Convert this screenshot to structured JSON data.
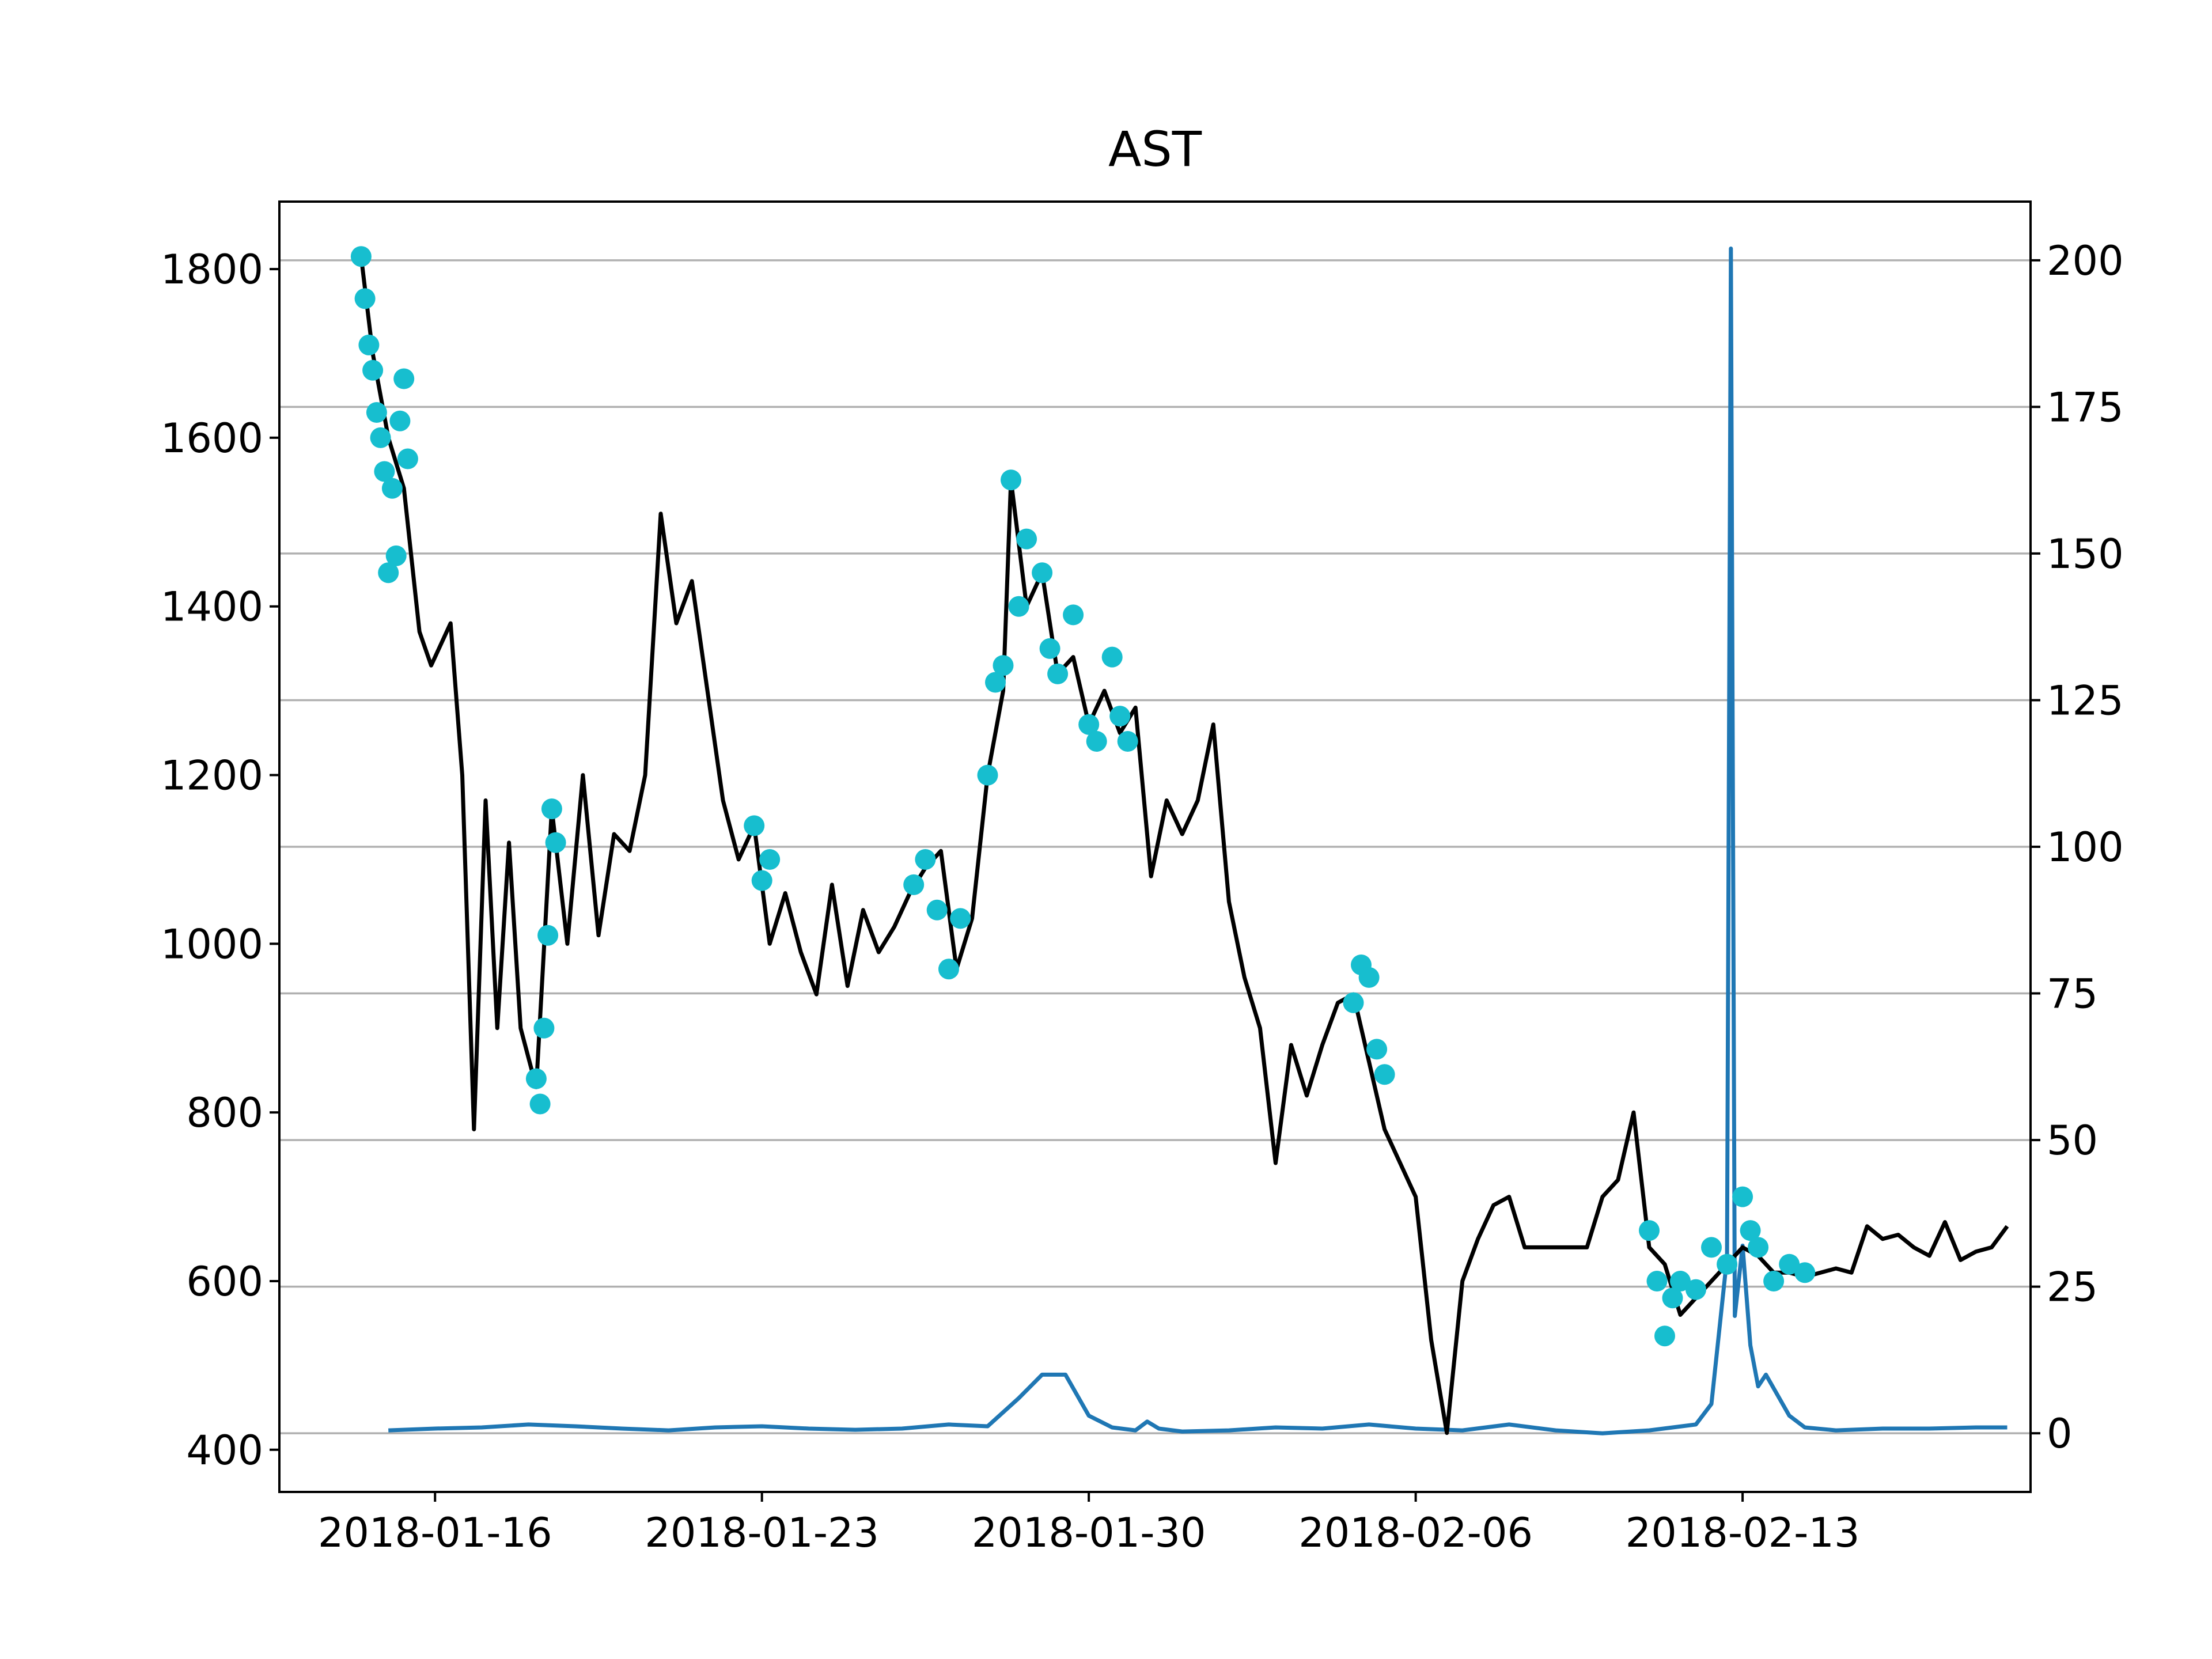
{
  "chart_data": {
    "type": "line",
    "title": "AST",
    "xlabel": "",
    "ylabel": "",
    "y2label": "",
    "x_ticks": [
      "2018-01-16",
      "2018-01-23",
      "2018-01-30",
      "2018-02-06",
      "2018-02-13"
    ],
    "xlim": [
      "2018-01-12T16:00",
      "2018-02-19T04:00"
    ],
    "ylim": [
      350,
      1880
    ],
    "y_ticks": [
      400,
      600,
      800,
      1000,
      1200,
      1400,
      1600,
      1800
    ],
    "y2lim": [
      -10,
      210
    ],
    "y2_ticks": [
      0,
      25,
      50,
      75,
      100,
      125,
      150,
      175,
      200
    ],
    "grid": "horizontal lines at right-axis ticks",
    "colors": {
      "price": "#000000",
      "markers": "#17becf",
      "volume": "#1f77b4",
      "grid": "#b0b0b0"
    },
    "series": [
      {
        "axis": "left",
        "style": "line",
        "points": [
          [
            "2018-01-14T10:00",
            1815
          ],
          [
            "2018-01-14T16:00",
            1700
          ],
          [
            "2018-01-15T00:00",
            1600
          ],
          [
            "2018-01-15T08:00",
            1540
          ],
          [
            "2018-01-15T16:00",
            1370
          ],
          [
            "2018-01-15T22:00",
            1330
          ],
          [
            "2018-01-16T08:00",
            1380
          ],
          [
            "2018-01-16T14:00",
            1200
          ],
          [
            "2018-01-16T20:00",
            780
          ],
          [
            "2018-01-17T02:00",
            1170
          ],
          [
            "2018-01-17T08:00",
            900
          ],
          [
            "2018-01-17T14:00",
            1120
          ],
          [
            "2018-01-17T20:00",
            900
          ],
          [
            "2018-01-18T04:00",
            830
          ],
          [
            "2018-01-18T12:00",
            1160
          ],
          [
            "2018-01-18T20:00",
            1000
          ],
          [
            "2018-01-19T04:00",
            1200
          ],
          [
            "2018-01-19T12:00",
            1010
          ],
          [
            "2018-01-19T20:00",
            1130
          ],
          [
            "2018-01-20T04:00",
            1110
          ],
          [
            "2018-01-20T12:00",
            1200
          ],
          [
            "2018-01-20T20:00",
            1510
          ],
          [
            "2018-01-21T04:00",
            1380
          ],
          [
            "2018-01-21T12:00",
            1430
          ],
          [
            "2018-01-21T20:00",
            1300
          ],
          [
            "2018-01-22T04:00",
            1170
          ],
          [
            "2018-01-22T12:00",
            1100
          ],
          [
            "2018-01-22T20:00",
            1140
          ],
          [
            "2018-01-23T04:00",
            1000
          ],
          [
            "2018-01-23T12:00",
            1060
          ],
          [
            "2018-01-23T20:00",
            990
          ],
          [
            "2018-01-24T04:00",
            940
          ],
          [
            "2018-01-24T12:00",
            1070
          ],
          [
            "2018-01-24T20:00",
            950
          ],
          [
            "2018-01-25T04:00",
            1040
          ],
          [
            "2018-01-25T12:00",
            990
          ],
          [
            "2018-01-25T20:00",
            1020
          ],
          [
            "2018-01-26T04:00",
            1060
          ],
          [
            "2018-01-26T12:00",
            1090
          ],
          [
            "2018-01-26T20:00",
            1110
          ],
          [
            "2018-01-27T04:00",
            970
          ],
          [
            "2018-01-27T12:00",
            1030
          ],
          [
            "2018-01-27T20:00",
            1200
          ],
          [
            "2018-01-28T04:00",
            1300
          ],
          [
            "2018-01-28T08:00",
            1550
          ],
          [
            "2018-01-28T16:00",
            1400
          ],
          [
            "2018-01-29T00:00",
            1440
          ],
          [
            "2018-01-29T08:00",
            1320
          ],
          [
            "2018-01-29T16:00",
            1340
          ],
          [
            "2018-01-30T00:00",
            1260
          ],
          [
            "2018-01-30T08:00",
            1300
          ],
          [
            "2018-01-30T16:00",
            1250
          ],
          [
            "2018-01-31T00:00",
            1280
          ],
          [
            "2018-01-31T08:00",
            1080
          ],
          [
            "2018-01-31T16:00",
            1170
          ],
          [
            "2018-02-01T00:00",
            1130
          ],
          [
            "2018-02-01T08:00",
            1170
          ],
          [
            "2018-02-01T16:00",
            1260
          ],
          [
            "2018-02-02T00:00",
            1050
          ],
          [
            "2018-02-02T08:00",
            960
          ],
          [
            "2018-02-02T16:00",
            900
          ],
          [
            "2018-02-03T00:00",
            740
          ],
          [
            "2018-02-03T08:00",
            880
          ],
          [
            "2018-02-03T16:00",
            820
          ],
          [
            "2018-02-04T00:00",
            880
          ],
          [
            "2018-02-04T08:00",
            930
          ],
          [
            "2018-02-04T16:00",
            940
          ],
          [
            "2018-02-05T00:00",
            860
          ],
          [
            "2018-02-05T08:00",
            780
          ],
          [
            "2018-02-05T16:00",
            740
          ],
          [
            "2018-02-06T00:00",
            700
          ],
          [
            "2018-02-06T08:00",
            530
          ],
          [
            "2018-02-06T16:00",
            420
          ],
          [
            "2018-02-07T00:00",
            600
          ],
          [
            "2018-02-07T08:00",
            650
          ],
          [
            "2018-02-07T16:00",
            690
          ],
          [
            "2018-02-08T00:00",
            700
          ],
          [
            "2018-02-08T08:00",
            640
          ],
          [
            "2018-02-09T16:00",
            640
          ],
          [
            "2018-02-10T00:00",
            700
          ],
          [
            "2018-02-10T08:00",
            720
          ],
          [
            "2018-02-10T16:00",
            800
          ],
          [
            "2018-02-11T00:00",
            640
          ],
          [
            "2018-02-11T08:00",
            620
          ],
          [
            "2018-02-11T16:00",
            560
          ],
          [
            "2018-02-12T00:00",
            580
          ],
          [
            "2018-02-12T08:00",
            600
          ],
          [
            "2018-02-12T16:00",
            620
          ],
          [
            "2018-02-13T00:00",
            640
          ],
          [
            "2018-02-13T08:00",
            630
          ],
          [
            "2018-02-13T16:00",
            610
          ],
          [
            "2018-02-14T00:00",
            610
          ],
          [
            "2018-02-14T08:00",
            605
          ],
          [
            "2018-02-15T00:00",
            615
          ],
          [
            "2018-02-15T08:00",
            610
          ],
          [
            "2018-02-15T16:00",
            665
          ],
          [
            "2018-02-16T00:00",
            650
          ],
          [
            "2018-02-16T08:00",
            655
          ],
          [
            "2018-02-16T16:00",
            640
          ],
          [
            "2018-02-17T00:00",
            630
          ],
          [
            "2018-02-17T08:00",
            670
          ],
          [
            "2018-02-17T16:00",
            625
          ],
          [
            "2018-02-18T00:00",
            635
          ],
          [
            "2018-02-18T08:00",
            640
          ],
          [
            "2018-02-18T16:00",
            665
          ]
        ]
      },
      {
        "axis": "left",
        "style": "markers",
        "points": [
          [
            "2018-01-14T10:00",
            1815
          ],
          [
            "2018-01-14T12:00",
            1765
          ],
          [
            "2018-01-14T14:00",
            1710
          ],
          [
            "2018-01-14T16:00",
            1680
          ],
          [
            "2018-01-14T18:00",
            1630
          ],
          [
            "2018-01-14T20:00",
            1600
          ],
          [
            "2018-01-14T22:00",
            1560
          ],
          [
            "2018-01-15T00:00",
            1440
          ],
          [
            "2018-01-15T02:00",
            1540
          ],
          [
            "2018-01-15T04:00",
            1460
          ],
          [
            "2018-01-15T06:00",
            1620
          ],
          [
            "2018-01-15T08:00",
            1670
          ],
          [
            "2018-01-15T10:00",
            1575
          ],
          [
            "2018-01-18T04:00",
            840
          ],
          [
            "2018-01-18T06:00",
            810
          ],
          [
            "2018-01-18T08:00",
            900
          ],
          [
            "2018-01-18T10:00",
            1010
          ],
          [
            "2018-01-18T12:00",
            1160
          ],
          [
            "2018-01-18T14:00",
            1120
          ],
          [
            "2018-01-22T20:00",
            1140
          ],
          [
            "2018-01-23T00:00",
            1075
          ],
          [
            "2018-01-23T04:00",
            1100
          ],
          [
            "2018-01-26T06:00",
            1070
          ],
          [
            "2018-01-26T12:00",
            1100
          ],
          [
            "2018-01-26T18:00",
            1040
          ],
          [
            "2018-01-27T00:00",
            970
          ],
          [
            "2018-01-27T06:00",
            1030
          ],
          [
            "2018-01-27T20:00",
            1200
          ],
          [
            "2018-01-28T00:00",
            1310
          ],
          [
            "2018-01-28T04:00",
            1330
          ],
          [
            "2018-01-28T08:00",
            1550
          ],
          [
            "2018-01-28T12:00",
            1400
          ],
          [
            "2018-01-28T16:00",
            1480
          ],
          [
            "2018-01-29T00:00",
            1440
          ],
          [
            "2018-01-29T04:00",
            1350
          ],
          [
            "2018-01-29T08:00",
            1320
          ],
          [
            "2018-01-29T16:00",
            1390
          ],
          [
            "2018-01-30T00:00",
            1260
          ],
          [
            "2018-01-30T04:00",
            1240
          ],
          [
            "2018-01-30T12:00",
            1340
          ],
          [
            "2018-01-30T16:00",
            1270
          ],
          [
            "2018-01-30T20:00",
            1240
          ],
          [
            "2018-02-04T16:00",
            930
          ],
          [
            "2018-02-04T20:00",
            975
          ],
          [
            "2018-02-05T00:00",
            960
          ],
          [
            "2018-02-05T04:00",
            875
          ],
          [
            "2018-02-05T08:00",
            845
          ],
          [
            "2018-02-11T00:00",
            660
          ],
          [
            "2018-02-11T04:00",
            600
          ],
          [
            "2018-02-11T08:00",
            535
          ],
          [
            "2018-02-11T12:00",
            580
          ],
          [
            "2018-02-11T16:00",
            600
          ],
          [
            "2018-02-12T00:00",
            590
          ],
          [
            "2018-02-12T08:00",
            640
          ],
          [
            "2018-02-12T16:00",
            620
          ],
          [
            "2018-02-13T00:00",
            700
          ],
          [
            "2018-02-13T04:00",
            660
          ],
          [
            "2018-02-13T08:00",
            640
          ],
          [
            "2018-02-13T16:00",
            600
          ],
          [
            "2018-02-14T00:00",
            620
          ],
          [
            "2018-02-14T08:00",
            610
          ]
        ]
      },
      {
        "axis": "right",
        "style": "line",
        "points": [
          [
            "2018-01-15T00:00",
            0.5
          ],
          [
            "2018-01-16T00:00",
            0.8
          ],
          [
            "2018-01-17T00:00",
            1
          ],
          [
            "2018-01-18T00:00",
            1.5
          ],
          [
            "2018-01-19T00:00",
            1.2
          ],
          [
            "2018-01-20T00:00",
            0.8
          ],
          [
            "2018-01-21T00:00",
            0.5
          ],
          [
            "2018-01-22T00:00",
            1
          ],
          [
            "2018-01-23T00:00",
            1.2
          ],
          [
            "2018-01-24T00:00",
            0.8
          ],
          [
            "2018-01-25T00:00",
            0.6
          ],
          [
            "2018-01-26T00:00",
            0.8
          ],
          [
            "2018-01-27T00:00",
            1.5
          ],
          [
            "2018-01-27T20:00",
            1.2
          ],
          [
            "2018-01-28T12:00",
            6
          ],
          [
            "2018-01-29T00:00",
            10
          ],
          [
            "2018-01-29T12:00",
            10
          ],
          [
            "2018-01-30T00:00",
            3
          ],
          [
            "2018-01-30T12:00",
            1
          ],
          [
            "2018-01-31T00:00",
            0.5
          ],
          [
            "2018-01-31T06:00",
            2
          ],
          [
            "2018-01-31T12:00",
            0.8
          ],
          [
            "2018-02-01T00:00",
            0.3
          ],
          [
            "2018-02-02T00:00",
            0.5
          ],
          [
            "2018-02-03T00:00",
            1
          ],
          [
            "2018-02-04T00:00",
            0.8
          ],
          [
            "2018-02-05T00:00",
            1.5
          ],
          [
            "2018-02-06T00:00",
            0.8
          ],
          [
            "2018-02-07T00:00",
            0.5
          ],
          [
            "2018-02-08T00:00",
            1.5
          ],
          [
            "2018-02-09T00:00",
            0.5
          ],
          [
            "2018-02-10T00:00",
            0
          ],
          [
            "2018-02-11T00:00",
            0.5
          ],
          [
            "2018-02-12T00:00",
            1.5
          ],
          [
            "2018-02-12T08:00",
            5
          ],
          [
            "2018-02-12T16:00",
            30
          ],
          [
            "2018-02-12T18:00",
            202
          ],
          [
            "2018-02-12T20:00",
            20
          ],
          [
            "2018-02-13T00:00",
            32
          ],
          [
            "2018-02-13T04:00",
            15
          ],
          [
            "2018-02-13T08:00",
            8
          ],
          [
            "2018-02-13T12:00",
            10
          ],
          [
            "2018-02-14T00:00",
            3
          ],
          [
            "2018-02-14T08:00",
            1
          ],
          [
            "2018-02-15T00:00",
            0.5
          ],
          [
            "2018-02-16T00:00",
            0.8
          ],
          [
            "2018-02-17T00:00",
            0.8
          ],
          [
            "2018-02-18T00:00",
            1
          ],
          [
            "2018-02-18T16:00",
            1
          ]
        ]
      }
    ]
  }
}
